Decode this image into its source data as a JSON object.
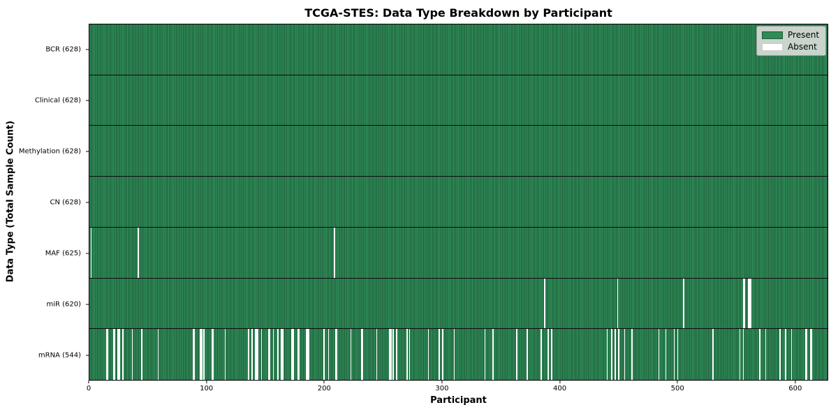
{
  "title": "TCGA-STES: Data Type Breakdown by Participant",
  "xlabel": "Participant",
  "ylabel": "Data Type (Total Sample Count)",
  "legend": {
    "present_label": "Present",
    "absent_label": "Absent"
  },
  "colors": {
    "present": "#2e8b57",
    "present_edge": "#205c3b",
    "absent": "#ffffff",
    "row_divider": "#0c0c0c",
    "axis": "#000000",
    "legend_bg": "#dadeda",
    "legend_border": "#9a9a9a"
  },
  "chart_data": {
    "type": "heatmap",
    "title": "TCGA-STES: Data Type Breakdown by Participant",
    "xlabel": "Participant",
    "ylabel": "Data Type (Total Sample Count)",
    "legend_entries": [
      "Present",
      "Absent"
    ],
    "legend_position": "upper right",
    "grid": false,
    "n_participants": 628,
    "x_axis": {
      "range": [
        0,
        628
      ],
      "ticks": [
        0,
        100,
        200,
        300,
        400,
        500,
        600
      ]
    },
    "rows": [
      {
        "name": "bcr",
        "label": "BCR (628)",
        "present_count": 628,
        "absent_count": 0,
        "absent_participants": []
      },
      {
        "name": "clinical",
        "label": "Clinical (628)",
        "present_count": 628,
        "absent_count": 0,
        "absent_participants": []
      },
      {
        "name": "methylation",
        "label": "Methylation (628)",
        "present_count": 628,
        "absent_count": 0,
        "absent_participants": []
      },
      {
        "name": "cn",
        "label": "CN (628)",
        "present_count": 628,
        "absent_count": 0,
        "absent_participants": []
      },
      {
        "name": "maf",
        "label": "MAF (625)",
        "present_count": 625,
        "absent_count": 3,
        "absent_participants": [
          1,
          41,
          208
        ]
      },
      {
        "name": "mir",
        "label": "miR (620)",
        "present_count": 620,
        "absent_count": 8,
        "absent_participants": [
          387,
          449,
          505,
          556,
          557,
          560,
          561,
          562
        ]
      },
      {
        "name": "mrna",
        "label": "mRNA (544)",
        "present_count": 544,
        "absent_count": 84,
        "absent_participants": [
          14,
          15,
          20,
          21,
          24,
          25,
          28,
          36,
          44,
          58,
          88,
          89,
          94,
          95,
          97,
          104,
          105,
          115,
          135,
          138,
          141,
          142,
          143,
          146,
          152,
          153,
          156,
          160,
          163,
          164,
          172,
          173,
          177,
          178,
          184,
          185,
          186,
          199,
          203,
          209,
          210,
          222,
          231,
          232,
          244,
          255,
          256,
          258,
          261,
          270,
          272,
          288,
          297,
          300,
          310,
          336,
          343,
          363,
          372,
          384,
          390,
          393,
          440,
          444,
          447,
          450,
          455,
          461,
          484,
          490,
          497,
          500,
          530,
          553,
          556,
          570,
          575,
          587,
          592,
          597,
          609,
          610,
          613,
          614
        ]
      }
    ]
  }
}
